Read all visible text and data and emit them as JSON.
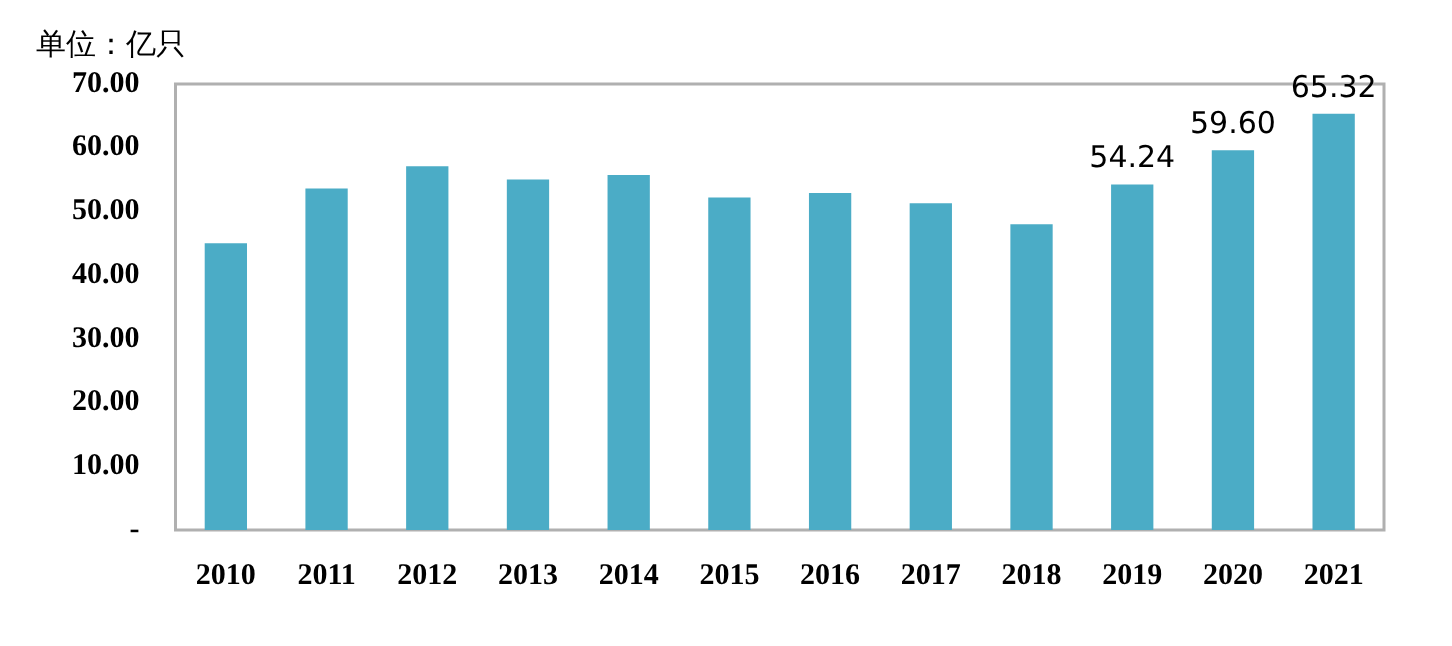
{
  "chart_data": {
    "type": "bar",
    "title": "单位：亿只",
    "categories": [
      "2010",
      "2011",
      "2012",
      "2013",
      "2014",
      "2015",
      "2016",
      "2017",
      "2018",
      "2019",
      "2020",
      "2021"
    ],
    "values": [
      45.0,
      53.6,
      57.1,
      55.0,
      55.7,
      52.2,
      52.9,
      51.3,
      48.0,
      54.24,
      59.6,
      65.32
    ],
    "value_labels": [
      null,
      null,
      null,
      null,
      null,
      null,
      null,
      null,
      null,
      "54.24",
      "59.60",
      "65.32"
    ],
    "color": "#4bacc6",
    "ylim": [
      0,
      70
    ],
    "yticks": [
      {
        "value": 0,
        "label": "-"
      },
      {
        "value": 10,
        "label": "10.00"
      },
      {
        "value": 20,
        "label": "20.00"
      },
      {
        "value": 30,
        "label": "30.00"
      },
      {
        "value": 40,
        "label": "40.00"
      },
      {
        "value": 50,
        "label": "50.00"
      },
      {
        "value": 60,
        "label": "60.00"
      },
      {
        "value": 70,
        "label": "70.00"
      }
    ],
    "grid": false,
    "legend": false
  }
}
